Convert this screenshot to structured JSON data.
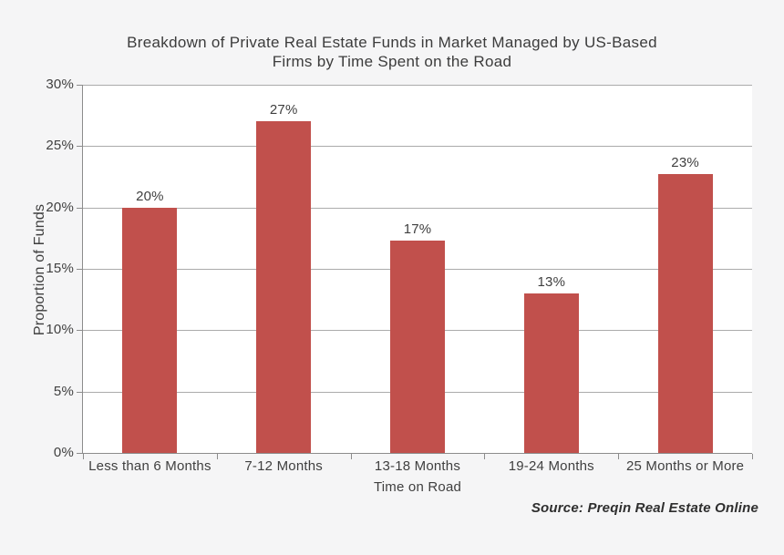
{
  "colors": {
    "background": "#f5f5f6",
    "plot_background": "#ffffff",
    "bar": "#c1504c",
    "gridline": "#ababab",
    "axis": "#8c8c8c",
    "text": "#3f3f3f"
  },
  "chart_data": {
    "type": "bar",
    "title": "Breakdown of Private Real Estate Funds in Market Managed by US-Based Firms by Time Spent on the Road",
    "title_line1": "Breakdown of Private Real Estate Funds in Market Managed by US-Based",
    "title_line2": "Firms by Time Spent on the Road",
    "categories": [
      "Less than 6 Months",
      "7-12 Months",
      "13-18 Months",
      "19-24 Months",
      "25 Months or More"
    ],
    "values": [
      20.0,
      27.0,
      17.3,
      13.0,
      22.7
    ],
    "data_labels": [
      "20%",
      "27%",
      "17%",
      "13%",
      "23%"
    ],
    "xlabel": "Time on Road",
    "ylabel": "Proportion of Funds",
    "ylim": [
      0,
      30
    ],
    "ytick_step": 5,
    "ytick_labels": [
      "0%",
      "5%",
      "10%",
      "15%",
      "20%",
      "25%",
      "30%"
    ],
    "grid": "horizontal",
    "legend": "none",
    "bar_color": "#c1504c",
    "source": "Source: Preqin Real Estate Online"
  }
}
